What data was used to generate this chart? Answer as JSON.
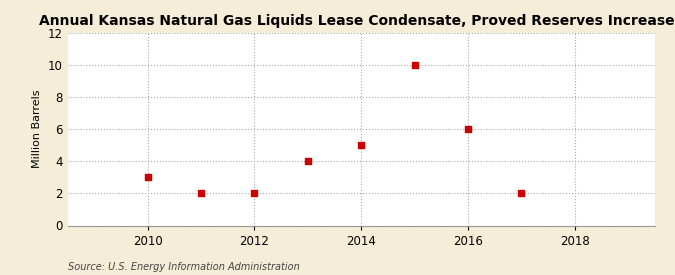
{
  "title": "Annual Kansas Natural Gas Liquids Lease Condensate, Proved Reserves Increases",
  "ylabel": "Million Barrels",
  "source": "Source: U.S. Energy Information Administration",
  "figure_facecolor": "#f5edd8",
  "axes_facecolor": "#ffffff",
  "x_values": [
    2010,
    2011,
    2012,
    2013,
    2014,
    2015,
    2016,
    2017
  ],
  "y_values": [
    3,
    2,
    2,
    4,
    5,
    10,
    6,
    2
  ],
  "marker_color": "#cc0000",
  "marker_size": 16,
  "xlim": [
    2008.5,
    2019.5
  ],
  "ylim": [
    0,
    12
  ],
  "yticks": [
    0,
    2,
    4,
    6,
    8,
    10,
    12
  ],
  "xticks": [
    2010,
    2012,
    2014,
    2016,
    2018
  ],
  "grid_color": "#aaaaaa",
  "title_fontsize": 10,
  "label_fontsize": 8,
  "tick_fontsize": 8.5,
  "source_fontsize": 7
}
